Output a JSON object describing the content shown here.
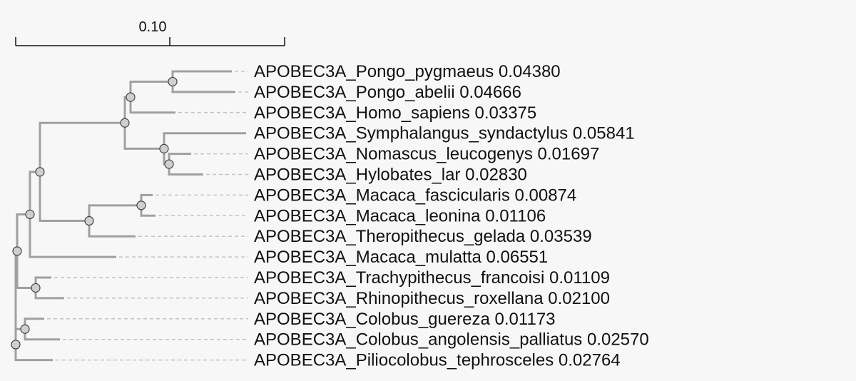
{
  "scale_bar": {
    "label": "0.10",
    "value": 0.1
  },
  "colors": {
    "background": "#f7f7f7",
    "branch": "#a0a0a0",
    "guide": "#c4c4c4",
    "node_fill": "#cfcfcf",
    "node_stroke": "#444444",
    "text": "#111111"
  },
  "leaves": [
    {
      "name": "APOBEC3A_Pongo_pygmaeus",
      "value": "0.04380"
    },
    {
      "name": "APOBEC3A_Pongo_abelii",
      "value": "0.04666"
    },
    {
      "name": "APOBEC3A_Homo_sapiens",
      "value": "0.03375"
    },
    {
      "name": "APOBEC3A_Symphalangus_syndactylus",
      "value": "0.05841"
    },
    {
      "name": "APOBEC3A_Nomascus_leucogenys",
      "value": "0.01697"
    },
    {
      "name": "APOBEC3A_Hylobates_lar",
      "value": "0.02830"
    },
    {
      "name": "APOBEC3A_Macaca_fascicularis",
      "value": "0.00874"
    },
    {
      "name": "APOBEC3A_Macaca_leonina",
      "value": "0.01106"
    },
    {
      "name": "APOBEC3A_Theropithecus_gelada",
      "value": "0.03539"
    },
    {
      "name": "APOBEC3A_Macaca_mulatta",
      "value": "0.06551"
    },
    {
      "name": "APOBEC3A_Trachypithecus_francoisi",
      "value": "0.01109"
    },
    {
      "name": "APOBEC3A_Rhinopithecus_roxellana",
      "value": "0.02100"
    },
    {
      "name": "APOBEC3A_Colobus_guereza",
      "value": "0.01173"
    },
    {
      "name": "APOBEC3A_Colobus_angolensis_palliatus",
      "value": "0.02570"
    },
    {
      "name": "APOBEC3A_Piliocolobus_tephrosceles",
      "value": "0.02764"
    }
  ]
}
